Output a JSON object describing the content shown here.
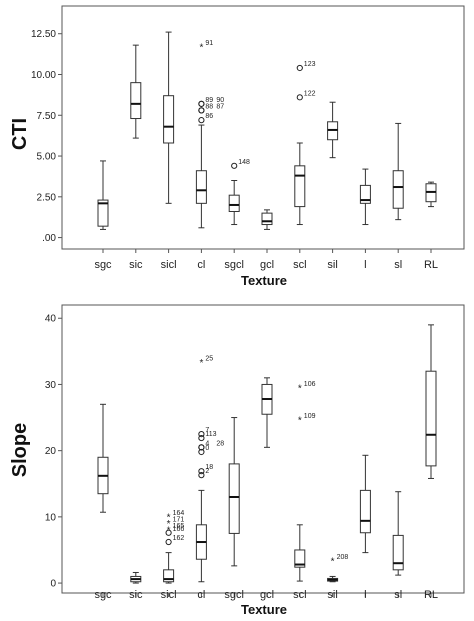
{
  "chart_data": [
    {
      "type": "box",
      "xlabel": "Texture",
      "ylabel": "CTI",
      "ylim": [
        -0.7,
        14.2
      ],
      "yticks": [
        0,
        2.5,
        5.0,
        7.5,
        10.0,
        12.5
      ],
      "ytick_labels": [
        ".00",
        "2.50",
        "5.00",
        "7.50",
        "10.00",
        "12.50"
      ],
      "categories": [
        "sgc",
        "sic",
        "sicl",
        "cl",
        "sgcl",
        "gcl",
        "scl",
        "sil",
        "l",
        "sl",
        "RL"
      ],
      "boxes": [
        {
          "category": "sgc",
          "min": 0.5,
          "q1": 0.7,
          "median": 2.1,
          "q3": 2.3,
          "max": 4.7
        },
        {
          "category": "sic",
          "min": 6.1,
          "q1": 7.3,
          "median": 8.2,
          "q3": 9.5,
          "max": 11.8
        },
        {
          "category": "sicl",
          "min": 2.1,
          "q1": 5.8,
          "median": 6.8,
          "q3": 8.7,
          "max": 12.6
        },
        {
          "category": "cl",
          "min": 0.6,
          "q1": 2.1,
          "median": 2.9,
          "q3": 4.1,
          "max": 6.9
        },
        {
          "category": "sgcl",
          "min": 0.8,
          "q1": 1.6,
          "median": 2.0,
          "q3": 2.6,
          "max": 3.5
        },
        {
          "category": "gcl",
          "min": 0.5,
          "q1": 0.8,
          "median": 1.0,
          "q3": 1.5,
          "max": 1.7
        },
        {
          "category": "scl",
          "min": 0.8,
          "q1": 1.9,
          "median": 3.8,
          "q3": 4.4,
          "max": 5.8
        },
        {
          "category": "sil",
          "min": 4.9,
          "q1": 6.0,
          "median": 6.6,
          "q3": 7.1,
          "max": 8.3
        },
        {
          "category": "l",
          "min": 0.8,
          "q1": 2.1,
          "median": 2.3,
          "q3": 3.2,
          "max": 4.2
        },
        {
          "category": "sl",
          "min": 1.1,
          "q1": 1.8,
          "median": 3.1,
          "q3": 4.1,
          "max": 7.0
        },
        {
          "category": "RL",
          "min": 1.9,
          "q1": 2.2,
          "median": 2.8,
          "q3": 3.3,
          "max": 3.4
        }
      ],
      "outliers": [
        {
          "category": "cl",
          "value": 11.7,
          "marker": "star",
          "label": "91"
        },
        {
          "category": "cl",
          "value": 8.2,
          "marker": "circle",
          "label": "89"
        },
        {
          "category": "cl",
          "value": 8.2,
          "marker": "circle",
          "label": "90"
        },
        {
          "category": "cl",
          "value": 7.8,
          "marker": "circle",
          "label": "88"
        },
        {
          "category": "cl",
          "value": 7.8,
          "marker": "circle",
          "label": "87"
        },
        {
          "category": "cl",
          "value": 7.2,
          "marker": "circle",
          "label": "86"
        },
        {
          "category": "sgcl",
          "value": 4.4,
          "marker": "circle",
          "label": "148"
        },
        {
          "category": "scl",
          "value": 10.4,
          "marker": "circle",
          "label": "123"
        },
        {
          "category": "scl",
          "value": 8.6,
          "marker": "circle",
          "label": "122"
        }
      ]
    },
    {
      "type": "box",
      "xlabel": "Texture",
      "ylabel": "Slope",
      "ylim": [
        -1.5,
        42
      ],
      "yticks": [
        0,
        10,
        20,
        30,
        40
      ],
      "ytick_labels": [
        "0",
        "10",
        "20",
        "30",
        "40"
      ],
      "categories": [
        "sgc",
        "sic",
        "sicl",
        "cl",
        "sgcl",
        "gcl",
        "scl",
        "sil",
        "l",
        "sl",
        "RL"
      ],
      "boxes": [
        {
          "category": "sgc",
          "min": 10.7,
          "q1": 13.5,
          "median": 16.2,
          "q3": 19.0,
          "max": 27.0
        },
        {
          "category": "sic",
          "min": 0.0,
          "q1": 0.2,
          "median": 0.6,
          "q3": 1.0,
          "max": 1.6
        },
        {
          "category": "sicl",
          "min": 0.0,
          "q1": 0.2,
          "median": 0.6,
          "q3": 2.0,
          "max": 4.6
        },
        {
          "category": "cl",
          "min": 0.2,
          "q1": 3.6,
          "median": 6.2,
          "q3": 8.8,
          "max": 14.0
        },
        {
          "category": "sgcl",
          "min": 2.6,
          "q1": 7.5,
          "median": 13.0,
          "q3": 18.0,
          "max": 25.0
        },
        {
          "category": "gcl",
          "min": 20.5,
          "q1": 25.5,
          "median": 27.8,
          "q3": 30.0,
          "max": 31.0
        },
        {
          "category": "scl",
          "min": 0.3,
          "q1": 2.4,
          "median": 2.8,
          "q3": 5.0,
          "max": 8.8
        },
        {
          "category": "sil",
          "min": 0.2,
          "q1": 0.3,
          "median": 0.5,
          "q3": 0.7,
          "max": 1.0
        },
        {
          "category": "l",
          "min": 4.6,
          "q1": 7.6,
          "median": 9.4,
          "q3": 14.0,
          "max": 19.3
        },
        {
          "category": "sl",
          "min": 1.2,
          "q1": 2.0,
          "median": 3.0,
          "q3": 7.2,
          "max": 13.8
        },
        {
          "category": "RL",
          "min": 15.8,
          "q1": 17.7,
          "median": 22.4,
          "q3": 32.0,
          "max": 39.0
        }
      ],
      "outliers": [
        {
          "category": "sicl",
          "value": 10.0,
          "marker": "star",
          "label": "164"
        },
        {
          "category": "sicl",
          "value": 9.0,
          "marker": "star",
          "label": "171"
        },
        {
          "category": "sicl",
          "value": 8.0,
          "marker": "star",
          "label": "165"
        },
        {
          "category": "sicl",
          "value": 7.6,
          "marker": "circle",
          "label": "166"
        },
        {
          "category": "sicl",
          "value": 6.2,
          "marker": "circle",
          "label": "162"
        },
        {
          "category": "cl",
          "value": 33.3,
          "marker": "star",
          "label": "25"
        },
        {
          "category": "cl",
          "value": 22.5,
          "marker": "circle",
          "label": "7"
        },
        {
          "category": "cl",
          "value": 21.9,
          "marker": "circle",
          "label": "113"
        },
        {
          "category": "cl",
          "value": 20.5,
          "marker": "circle",
          "label": "4"
        },
        {
          "category": "cl",
          "value": 20.5,
          "marker": "circle",
          "label": "28"
        },
        {
          "category": "cl",
          "value": 19.8,
          "marker": "circle",
          "label": "0"
        },
        {
          "category": "cl",
          "value": 16.9,
          "marker": "circle",
          "label": "18"
        },
        {
          "category": "cl",
          "value": 16.3,
          "marker": "circle",
          "label": "2"
        },
        {
          "category": "scl",
          "value": 29.5,
          "marker": "star",
          "label": "106"
        },
        {
          "category": "scl",
          "value": 24.6,
          "marker": "star",
          "label": "109"
        },
        {
          "category": "sil",
          "value": 3.3,
          "marker": "star",
          "label": "208"
        }
      ]
    }
  ],
  "colors": {
    "frame": "#555555",
    "box_fill": "#ffffff",
    "box_stroke": "#333333",
    "text": "#222222"
  }
}
